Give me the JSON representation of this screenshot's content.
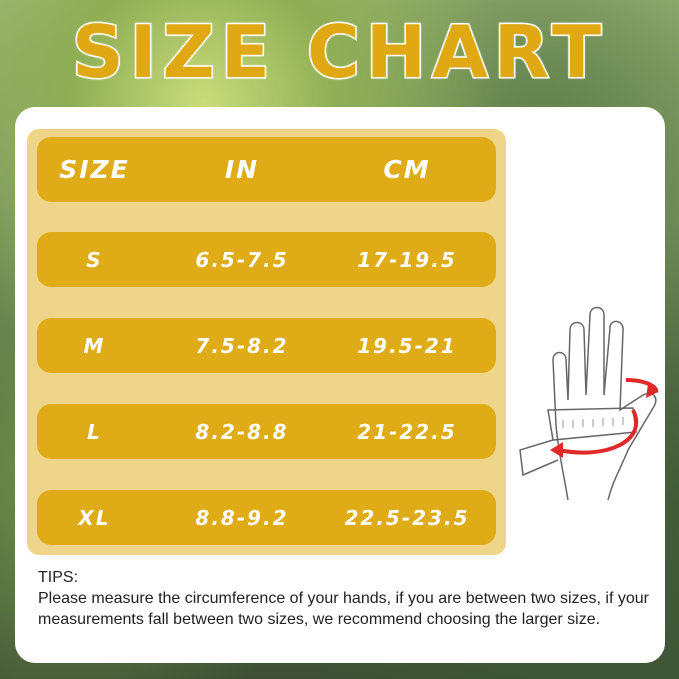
{
  "title": "SIZE CHART",
  "table": {
    "headers": [
      "SIZE",
      "IN",
      "CM"
    ],
    "rows": [
      [
        "S",
        "6.5-7.5",
        "17-19.5"
      ],
      [
        "M",
        "7.5-8.2",
        "19.5-21"
      ],
      [
        "L",
        "8.2-8.8",
        "21-22.5"
      ],
      [
        "XL",
        "8.8-9.2",
        "22.5-23.5"
      ]
    ]
  },
  "tips": {
    "heading": "TIPS:",
    "body": "Please measure the circumference of your hands, if you are between two sizes,  if your measurements fall between two sizes, we recommend choosing the larger size."
  },
  "colors": {
    "accent": "#dfab17",
    "table_bg": "#efd58a",
    "arrow": "#e02a2a"
  }
}
